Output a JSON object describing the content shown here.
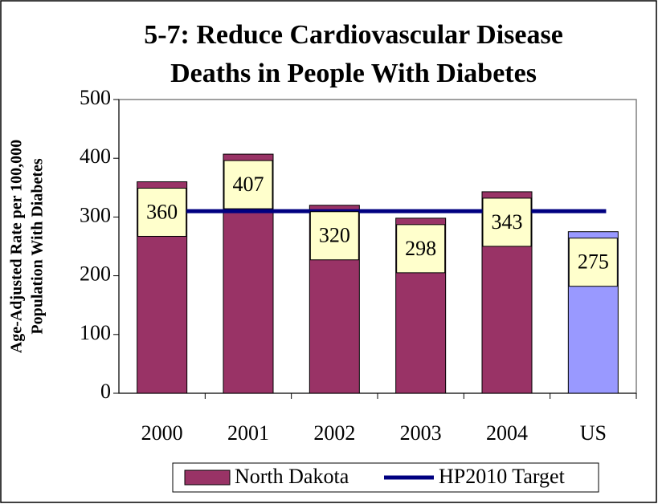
{
  "chart_data": {
    "type": "bar",
    "title": [
      "5-7: Reduce Cardiovascular Disease",
      "Deaths in People With Diabetes"
    ],
    "y_label": [
      "Age-Adjusted Rate per 100,000",
      "Population With Diabetes"
    ],
    "categories": [
      "2000",
      "2001",
      "2002",
      "2003",
      "2004",
      "US"
    ],
    "series": [
      {
        "name": "North Dakota",
        "color": "#993366",
        "bar_colors": [
          "#993366",
          "#993366",
          "#993366",
          "#993366",
          "#993366",
          "#9999ff"
        ],
        "values": [
          360,
          407,
          320,
          298,
          343,
          275
        ]
      }
    ],
    "target": {
      "name": "HP2010 Target",
      "color": "#000080",
      "value": 310
    },
    "ylim": [
      0,
      500
    ],
    "yticks": [
      0,
      100,
      200,
      300,
      400,
      500
    ],
    "label_box_color": "#ffffcc",
    "legend": "bottom"
  }
}
